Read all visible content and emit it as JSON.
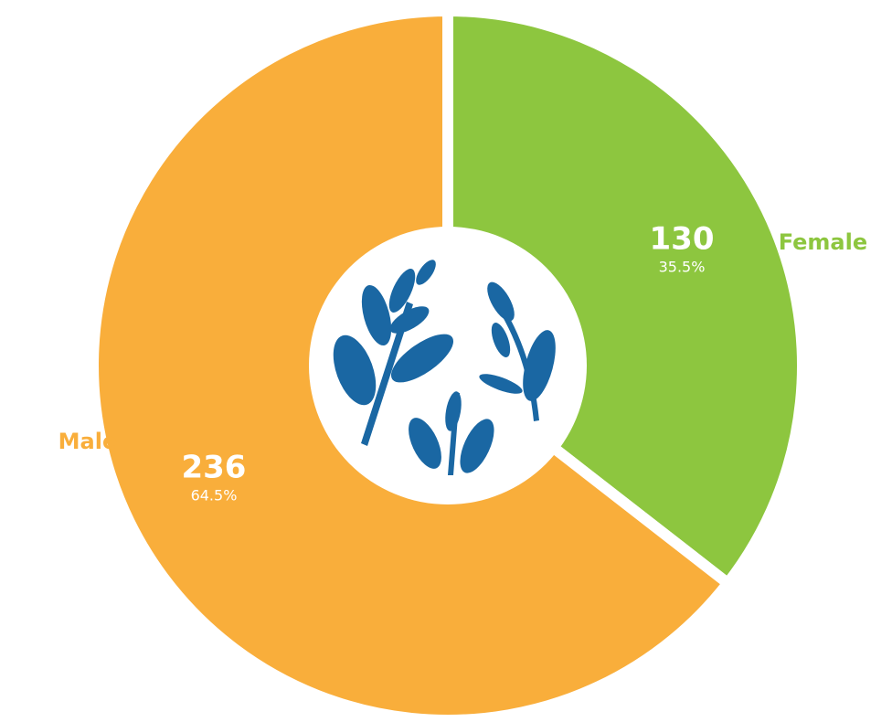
{
  "chart_data": {
    "type": "donut",
    "categories": [
      "Female",
      "Male"
    ],
    "values": [
      130,
      236
    ],
    "percent_labels": [
      "35.5%",
      "64.5%"
    ],
    "colors": [
      "#8dc63f",
      "#f9ae3b"
    ]
  }
}
